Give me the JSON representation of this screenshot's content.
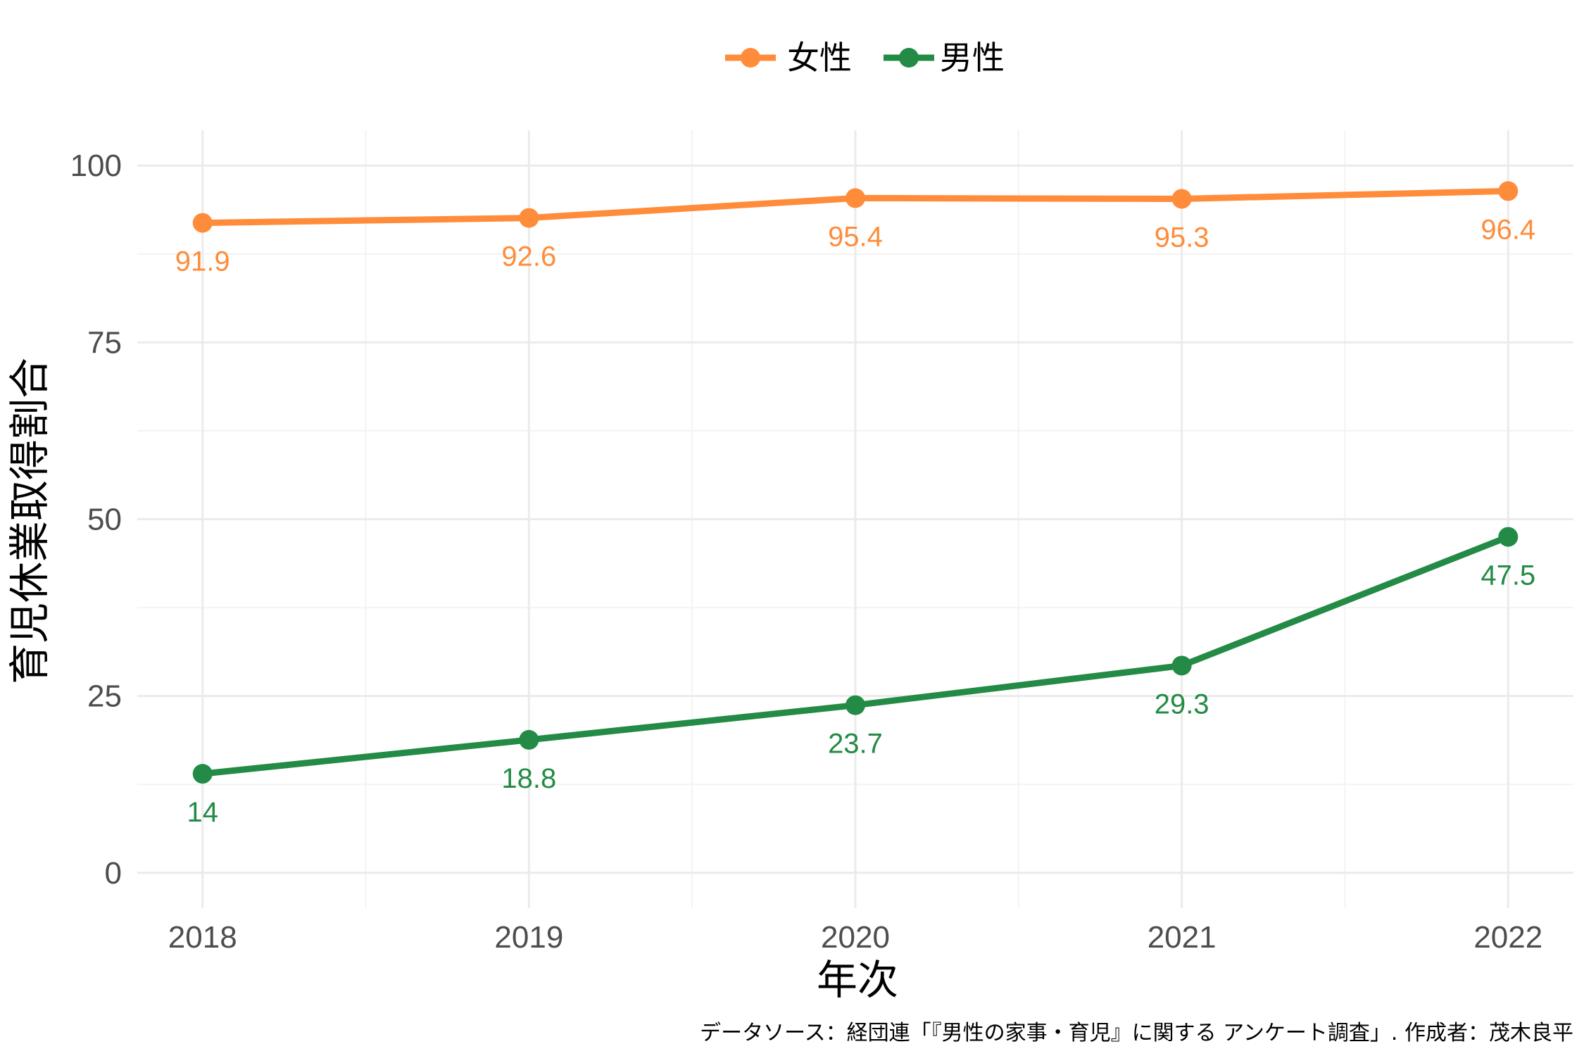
{
  "chart_data": {
    "type": "line",
    "x": [
      2018,
      2019,
      2020,
      2021,
      2022
    ],
    "xlabel": "年次",
    "ylabel": "育児休業取得割合",
    "ylim": [
      -5,
      105
    ],
    "y_ticks": [
      "0",
      "25",
      "50",
      "75",
      "100"
    ],
    "x_ticks": [
      "2018",
      "2019",
      "2020",
      "2021",
      "2022"
    ],
    "grid": true,
    "legend_position": "top",
    "series": [
      {
        "name": "女性",
        "color": "#FF8C3A",
        "values": [
          91.9,
          92.6,
          95.4,
          95.3,
          96.4
        ],
        "labels": [
          "91.9",
          "92.6",
          "95.4",
          "95.3",
          "96.4"
        ]
      },
      {
        "name": "男性",
        "color": "#238B45",
        "values": [
          14,
          18.8,
          23.7,
          29.3,
          47.5
        ],
        "labels": [
          "14",
          "18.8",
          "23.7",
          "29.3",
          "47.5"
        ]
      }
    ],
    "caption": "データソース：経団連「『男性の家事・育児』に関する アンケート調査」. 作成者：茂木良平"
  }
}
